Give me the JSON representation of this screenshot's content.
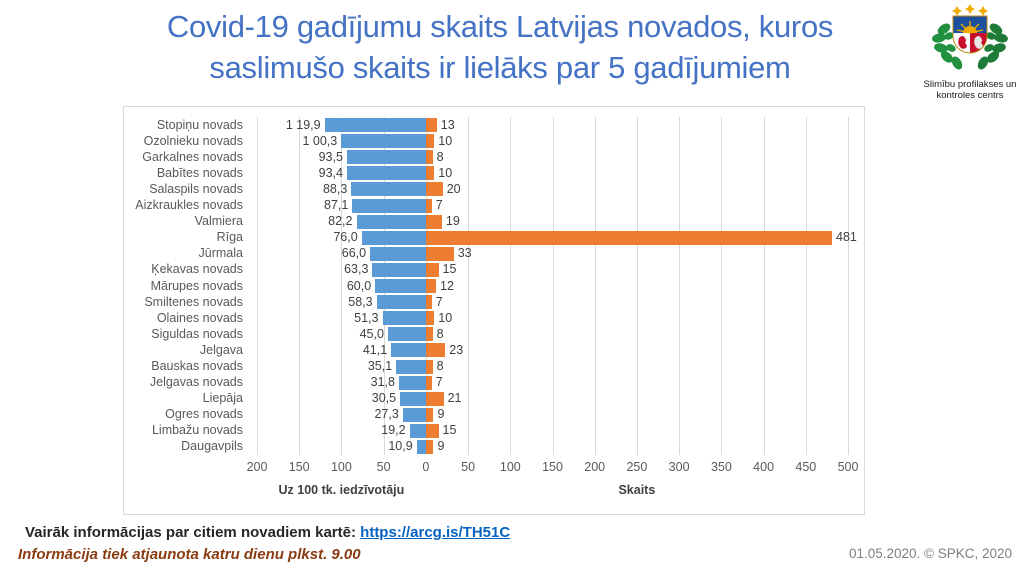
{
  "title": {
    "line1": "Covid-19 gadījumu skaits Latvijas novados, kuros",
    "line2": "saslimušo skaits ir lielāks par 5 gadījumiem"
  },
  "logo": {
    "icon": "latvia-coat-of-arms",
    "caption1": "Slimību profilakses un",
    "caption2": "kontroles centrs"
  },
  "chart_data": {
    "type": "bar",
    "subtype": "horizontal-diverging",
    "grid": true,
    "categories": [
      "Stopiņu novads",
      "Ozolnieku novads",
      "Garkalnes novads",
      "Babītes novads",
      "Salaspils novads",
      "Aizkraukles novads",
      "Valmiera",
      "Rīga",
      "Jūrmala",
      "Ķekavas novads",
      "Mārupes novads",
      "Smiltenes novads",
      "Olaines novads",
      "Siguldas novads",
      "Jelgava",
      "Bauskas novads",
      "Jelgavas novads",
      "Liepāja",
      "Ogres novads",
      "Limbažu novads",
      "Daugavpils"
    ],
    "series": [
      {
        "name": "Uz 100 tk. iedzīvotāju",
        "side": "left",
        "color": "#5B9BD5",
        "values": [
          119.9,
          100.3,
          93.5,
          93.4,
          88.3,
          87.1,
          82.2,
          76.0,
          66.0,
          63.3,
          60.0,
          58.3,
          51.3,
          45.0,
          41.1,
          35.1,
          31.8,
          30.5,
          27.3,
          19.2,
          10.9
        ],
        "labels": [
          "1 19,9",
          "1 00,3",
          "93,5",
          "93,4",
          "88,3",
          "87,1",
          "82,2",
          "76,0",
          "66,0",
          "63,3",
          "60,0",
          "58,3",
          "51,3",
          "45,0",
          "41,1",
          "35,1",
          "31,8",
          "30,5",
          "27,3",
          "19,2",
          "10,9"
        ]
      },
      {
        "name": "Skaits",
        "side": "right",
        "color": "#ED7D31",
        "values": [
          13,
          10,
          8,
          10,
          20,
          7,
          19,
          481,
          33,
          15,
          12,
          7,
          10,
          8,
          23,
          8,
          7,
          21,
          9,
          15,
          9
        ],
        "labels": [
          "13",
          "10",
          "8",
          "10",
          "20",
          "7",
          "19",
          "481",
          "33",
          "15",
          "12",
          "7",
          "10",
          "8",
          "23",
          "8",
          "7",
          "21",
          "9",
          "15",
          "9"
        ]
      }
    ],
    "x_axis": {
      "left_max": 200,
      "right_max": 500,
      "tick_step": 50,
      "ticks": [
        "200",
        "150",
        "100",
        "50",
        "0",
        "50",
        "100",
        "150",
        "200",
        "250",
        "300",
        "350",
        "400",
        "450",
        "500"
      ]
    },
    "axis_label_left": "Uz 100 tk. iedzīvotāju",
    "axis_label_right": "Skaits",
    "grid_color": "#D9D9D9"
  },
  "footer": {
    "info_text": "Vairāk informācijas par citiem novadiem kartē:",
    "link_text": "https://arcg.is/TH51C",
    "update_note": "Informācija tiek atjaunota katru dienu plkst. 9.00",
    "date_copyright": "01.05.2020. © SPKC, 2020"
  },
  "colors": {
    "title": "#4472C4",
    "bar_left": "#5B9BD5",
    "bar_right": "#ED7D31",
    "grid": "#D9D9D9",
    "axis_text": "#595959",
    "link": "#0563C1",
    "note": "#8A3C10"
  }
}
